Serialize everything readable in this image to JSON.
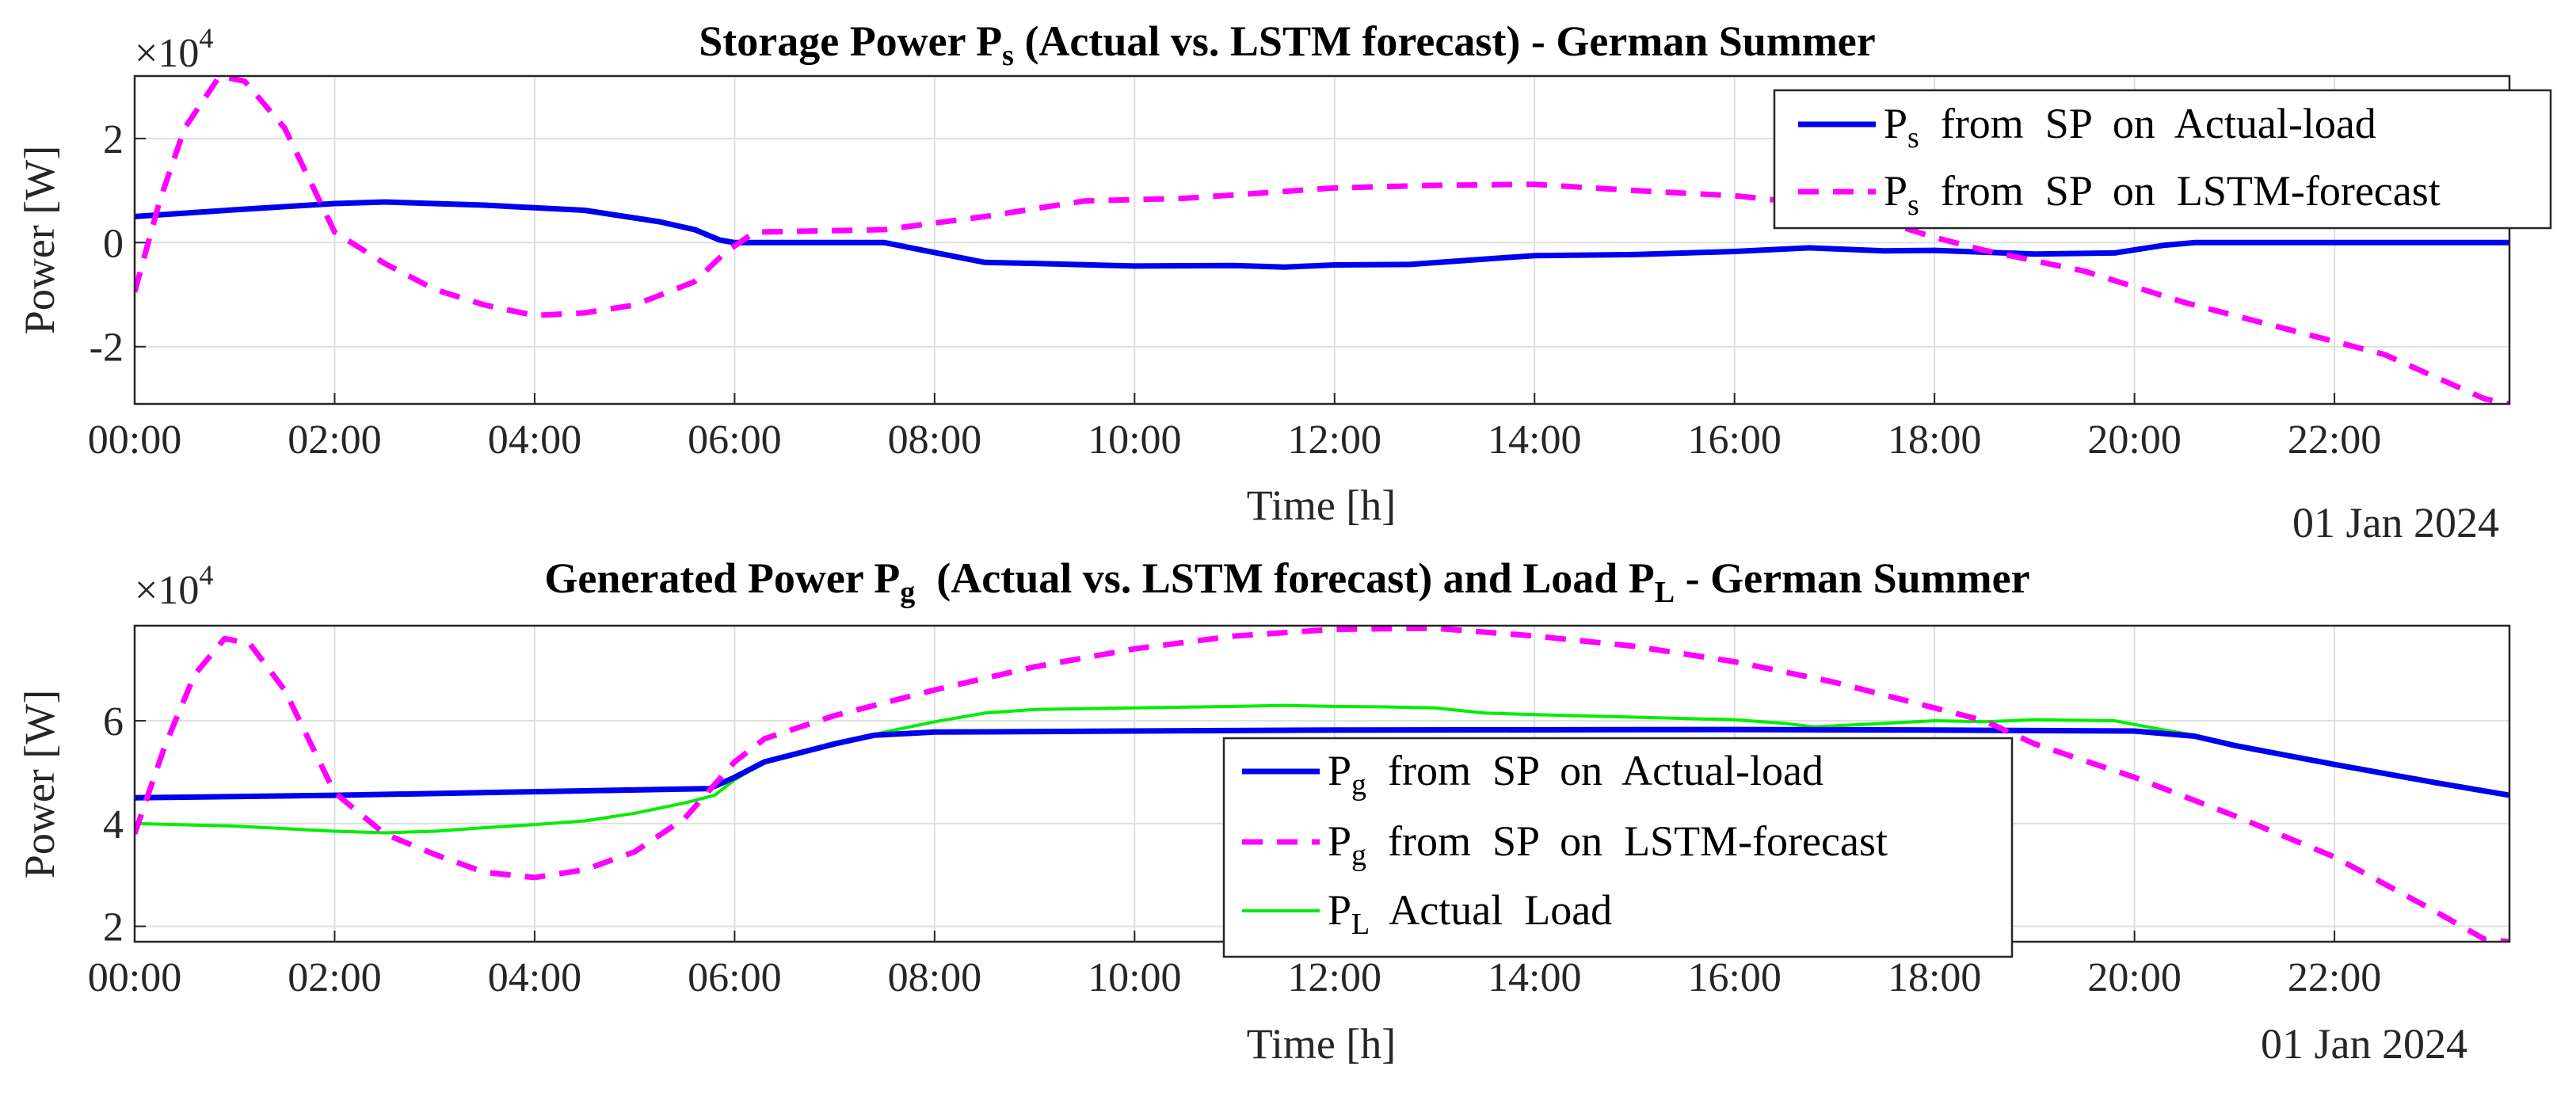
{
  "colors": {
    "actual": "#0000ee",
    "forecast": "#ff00ff",
    "load": "#00ee00",
    "axis": "#262626",
    "grid": "#dfdfdf"
  },
  "chart_data": [
    {
      "type": "line",
      "title": "Storage Power P_s (Actual vs. LSTM forecast) - German Summer",
      "title_parts": {
        "pre": "Storage Power P",
        "sub": "s",
        "post": " (Actual vs. LSTM forecast) - German Summer"
      },
      "exponent_label": {
        "base": "×10",
        "exp": "4"
      },
      "xlabel": "Time [h]",
      "ylabel": "Power [W]",
      "date_label": "01 Jan 2024",
      "xlim": [
        0,
        23.75
      ],
      "ylim": [
        -3.1,
        3.2
      ],
      "yticks": [
        -2,
        0,
        2
      ],
      "ytick_labels": [
        "-2",
        "0",
        "2"
      ],
      "xticks": [
        0,
        2,
        4,
        6,
        8,
        10,
        12,
        14,
        16,
        18,
        20,
        22
      ],
      "xtick_labels": [
        "00:00",
        "02:00",
        "04:00",
        "06:00",
        "08:00",
        "10:00",
        "12:00",
        "14:00",
        "16:00",
        "18:00",
        "20:00",
        "22:00"
      ],
      "legend_position": "top-right",
      "series": [
        {
          "name": "P_s from SP on Actual-load",
          "legend": {
            "sym": "P",
            "sub": "s",
            "text": "  from  SP  on  Actual-load"
          },
          "style": "solid",
          "color": "actual",
          "points": [
            [
              0,
              0.5
            ],
            [
              1,
              0.63
            ],
            [
              2,
              0.75
            ],
            [
              2.5,
              0.78
            ],
            [
              3.5,
              0.72
            ],
            [
              4.5,
              0.62
            ],
            [
              5.25,
              0.4
            ],
            [
              5.6,
              0.25
            ],
            [
              5.85,
              0.05
            ],
            [
              6,
              0
            ],
            [
              7.5,
              0
            ],
            [
              8.5,
              -0.38
            ],
            [
              9,
              -0.4
            ],
            [
              10,
              -0.45
            ],
            [
              11,
              -0.44
            ],
            [
              11.5,
              -0.47
            ],
            [
              12,
              -0.43
            ],
            [
              12.75,
              -0.42
            ],
            [
              14,
              -0.25
            ],
            [
              15,
              -0.23
            ],
            [
              16,
              -0.17
            ],
            [
              16.75,
              -0.1
            ],
            [
              17.5,
              -0.16
            ],
            [
              18,
              -0.15
            ],
            [
              19,
              -0.22
            ],
            [
              19.8,
              -0.2
            ],
            [
              20.3,
              -0.05
            ],
            [
              20.6,
              0
            ],
            [
              23.75,
              0
            ]
          ]
        },
        {
          "name": "P_s from SP on LSTM-forecast",
          "legend": {
            "sym": "P",
            "sub": "s",
            "text": "  from  SP  on  LSTM-forecast"
          },
          "style": "dashed",
          "color": "forecast",
          "points": [
            [
              0,
              -0.95
            ],
            [
              0.25,
              0.8
            ],
            [
              0.5,
              2.2
            ],
            [
              0.85,
              3.2
            ],
            [
              1.1,
              3.1
            ],
            [
              1.5,
              2.2
            ],
            [
              2,
              0.2
            ],
            [
              2.5,
              -0.4
            ],
            [
              3,
              -0.9
            ],
            [
              3.5,
              -1.2
            ],
            [
              4,
              -1.4
            ],
            [
              4.5,
              -1.35
            ],
            [
              5,
              -1.2
            ],
            [
              5.6,
              -0.75
            ],
            [
              5.9,
              -0.2
            ],
            [
              6.2,
              0.2
            ],
            [
              7.5,
              0.25
            ],
            [
              8.5,
              0.5
            ],
            [
              9.5,
              0.8
            ],
            [
              10.5,
              0.85
            ],
            [
              12,
              1.05
            ],
            [
              13,
              1.1
            ],
            [
              14,
              1.12
            ],
            [
              15,
              1.0
            ],
            [
              16,
              0.9
            ],
            [
              17,
              0.7
            ],
            [
              18,
              0.1
            ],
            [
              18.5,
              -0.15
            ],
            [
              19.5,
              -0.55
            ],
            [
              20.5,
              -1.15
            ],
            [
              21.5,
              -1.65
            ],
            [
              22.5,
              -2.15
            ],
            [
              23.5,
              -3.0
            ],
            [
              23.75,
              -3.1
            ]
          ]
        }
      ]
    },
    {
      "type": "line",
      "title": "Generated Power P_g (Actual vs. LSTM forecast) and Load P_L - German Summer",
      "title_parts": {
        "pre": "Generated Power P",
        "sub": "g",
        "mid": "  (Actual vs. LSTM forecast) and Load P",
        "sub2": "L",
        "post": " - German Summer"
      },
      "exponent_label": {
        "base": "×10",
        "exp": "4"
      },
      "xlabel": "Time [h]",
      "ylabel": "Power [W]",
      "date_label": "01 Jan 2024",
      "xlim": [
        0,
        23.75
      ],
      "ylim": [
        1.7,
        7.85
      ],
      "yticks": [
        2,
        4,
        6
      ],
      "ytick_labels": [
        "2",
        "4",
        "6"
      ],
      "xticks": [
        0,
        2,
        4,
        6,
        8,
        10,
        12,
        14,
        16,
        18,
        20,
        22
      ],
      "xtick_labels": [
        "00:00",
        "02:00",
        "04:00",
        "06:00",
        "08:00",
        "10:00",
        "12:00",
        "14:00",
        "16:00",
        "18:00",
        "20:00",
        "22:00"
      ],
      "legend_position": "bottom-center",
      "series": [
        {
          "name": "P_g from SP on Actual-load",
          "legend": {
            "sym": "P",
            "sub": "g",
            "text": "  from  SP  on  Actual-load"
          },
          "style": "solid",
          "color": "actual",
          "points": [
            [
              0,
              4.5
            ],
            [
              2,
              4.55
            ],
            [
              4,
              4.62
            ],
            [
              5.75,
              4.68
            ],
            [
              6,
              4.9
            ],
            [
              6.3,
              5.2
            ],
            [
              7,
              5.55
            ],
            [
              7.4,
              5.72
            ],
            [
              8,
              5.78
            ],
            [
              12,
              5.82
            ],
            [
              16,
              5.83
            ],
            [
              18,
              5.82
            ],
            [
              20,
              5.8
            ],
            [
              20.6,
              5.7
            ],
            [
              21,
              5.52
            ],
            [
              22,
              5.15
            ],
            [
              23,
              4.8
            ],
            [
              23.75,
              4.55
            ]
          ]
        },
        {
          "name": "P_g from SP on LSTM-forecast",
          "legend": {
            "sym": "P",
            "sub": "g",
            "text": "  from  SP  on  LSTM-forecast"
          },
          "style": "dashed",
          "color": "forecast",
          "points": [
            [
              0,
              3.8
            ],
            [
              0.3,
              5.5
            ],
            [
              0.6,
              6.9
            ],
            [
              0.9,
              7.6
            ],
            [
              1.15,
              7.5
            ],
            [
              1.5,
              6.6
            ],
            [
              2,
              4.6
            ],
            [
              2.5,
              3.8
            ],
            [
              3,
              3.4
            ],
            [
              3.5,
              3.05
            ],
            [
              4,
              2.95
            ],
            [
              4.5,
              3.1
            ],
            [
              5,
              3.45
            ],
            [
              5.5,
              4.1
            ],
            [
              6,
              5.2
            ],
            [
              6.3,
              5.65
            ],
            [
              7,
              6.1
            ],
            [
              8,
              6.6
            ],
            [
              9,
              7.05
            ],
            [
              10,
              7.4
            ],
            [
              11,
              7.65
            ],
            [
              12,
              7.78
            ],
            [
              13,
              7.8
            ],
            [
              14,
              7.65
            ],
            [
              15,
              7.45
            ],
            [
              16,
              7.15
            ],
            [
              17,
              6.75
            ],
            [
              18,
              6.25
            ],
            [
              18.5,
              6.0
            ],
            [
              19,
              5.55
            ],
            [
              20,
              4.9
            ],
            [
              21,
              4.15
            ],
            [
              22,
              3.35
            ],
            [
              23,
              2.3
            ],
            [
              23.5,
              1.75
            ],
            [
              23.75,
              1.7
            ]
          ]
        },
        {
          "name": "P_L Actual Load",
          "legend": {
            "sym": "P",
            "sub": "L",
            "text": "  Actual  Load"
          },
          "style": "solid",
          "color": "load",
          "points": [
            [
              0,
              4.0
            ],
            [
              1,
              3.95
            ],
            [
              2,
              3.85
            ],
            [
              2.5,
              3.82
            ],
            [
              3,
              3.85
            ],
            [
              3.5,
              3.92
            ],
            [
              4,
              3.98
            ],
            [
              4.5,
              4.05
            ],
            [
              5,
              4.2
            ],
            [
              5.5,
              4.4
            ],
            [
              5.8,
              4.55
            ],
            [
              6,
              4.85
            ],
            [
              6.3,
              5.2
            ],
            [
              7,
              5.55
            ],
            [
              7.5,
              5.78
            ],
            [
              8,
              5.98
            ],
            [
              8.5,
              6.15
            ],
            [
              9,
              6.22
            ],
            [
              10,
              6.25
            ],
            [
              11,
              6.28
            ],
            [
              11.5,
              6.3
            ],
            [
              12,
              6.28
            ],
            [
              12.5,
              6.27
            ],
            [
              13,
              6.25
            ],
            [
              13.5,
              6.15
            ],
            [
              14,
              6.12
            ],
            [
              15,
              6.07
            ],
            [
              16,
              6.02
            ],
            [
              16.5,
              5.95
            ],
            [
              16.8,
              5.88
            ],
            [
              17.5,
              5.95
            ],
            [
              18,
              6.0
            ],
            [
              18.5,
              5.98
            ],
            [
              19,
              6.02
            ],
            [
              19.8,
              6.0
            ],
            [
              20.3,
              5.82
            ],
            [
              20.6,
              5.72
            ],
            [
              21,
              5.52
            ],
            [
              22,
              5.15
            ],
            [
              23,
              4.82
            ],
            [
              23.75,
              4.55
            ]
          ]
        }
      ]
    }
  ]
}
